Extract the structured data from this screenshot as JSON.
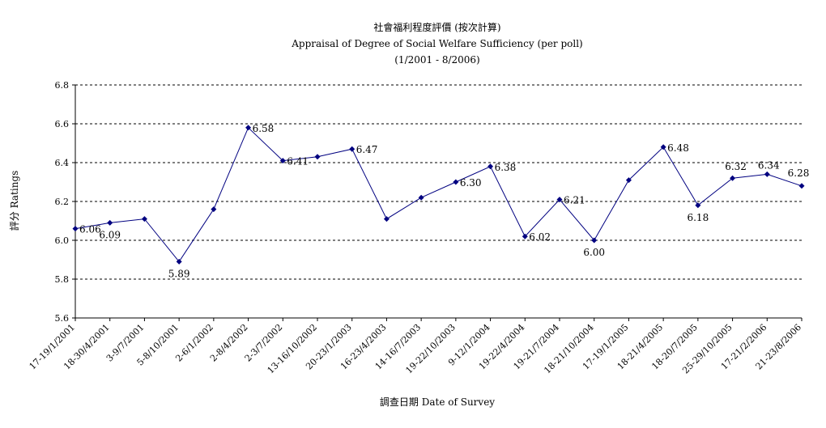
{
  "chart_data": {
    "type": "line",
    "title": "社會福利程度評價 (按次計算)",
    "subtitle": "Appraisal of Degree of Social Welfare Sufficiency (per poll)",
    "period": "(1/2001 - 8/2006)",
    "xlabel": "調查日期 Date of Survey",
    "ylabel": "評分 Ratings",
    "ylim": [
      5.6,
      6.8
    ],
    "yticks": [
      "5.6",
      "5.8",
      "6.0",
      "6.2",
      "6.4",
      "6.6",
      "6.8"
    ],
    "grid": true,
    "legend": "none",
    "categories": [
      "17-19/1/2001",
      "18-30/4/2001",
      "3-9/7/2001",
      "5-8/10/2001",
      "2-6/1/2002",
      "2-8/4/2002",
      "2-3/7/2002",
      "13-16/10/2002",
      "20-23/1/2003",
      "16-23/4/2003",
      "14-16/7/2003",
      "19-22/10/2003",
      "9-12/1/2004",
      "19-22/4/2004",
      "19-21/7/2004",
      "18-21/10/2004",
      "17-19/1/2005",
      "18-21/4/2005",
      "18-20/7/2005",
      "25-29/10/2005",
      "17-21/2/2006",
      "21-23/8/2006"
    ],
    "series": [
      {
        "values": [
          6.06,
          6.09,
          6.11,
          5.89,
          6.16,
          6.58,
          6.41,
          6.43,
          6.47,
          6.11,
          6.22,
          6.3,
          6.38,
          6.02,
          6.21,
          6.0,
          6.31,
          6.48,
          6.18,
          6.32,
          6.34,
          6.28
        ],
        "data_labels": [
          "6.06",
          "6.09",
          "",
          "5.89",
          "",
          "6.58",
          "6.41",
          "",
          "6.47",
          "",
          "",
          "6.30",
          "6.38",
          "6.02",
          "6.21",
          "6.00",
          "",
          "6.48",
          "6.18",
          "6.32",
          "6.34",
          "6.28"
        ],
        "color": "#000080"
      }
    ]
  }
}
